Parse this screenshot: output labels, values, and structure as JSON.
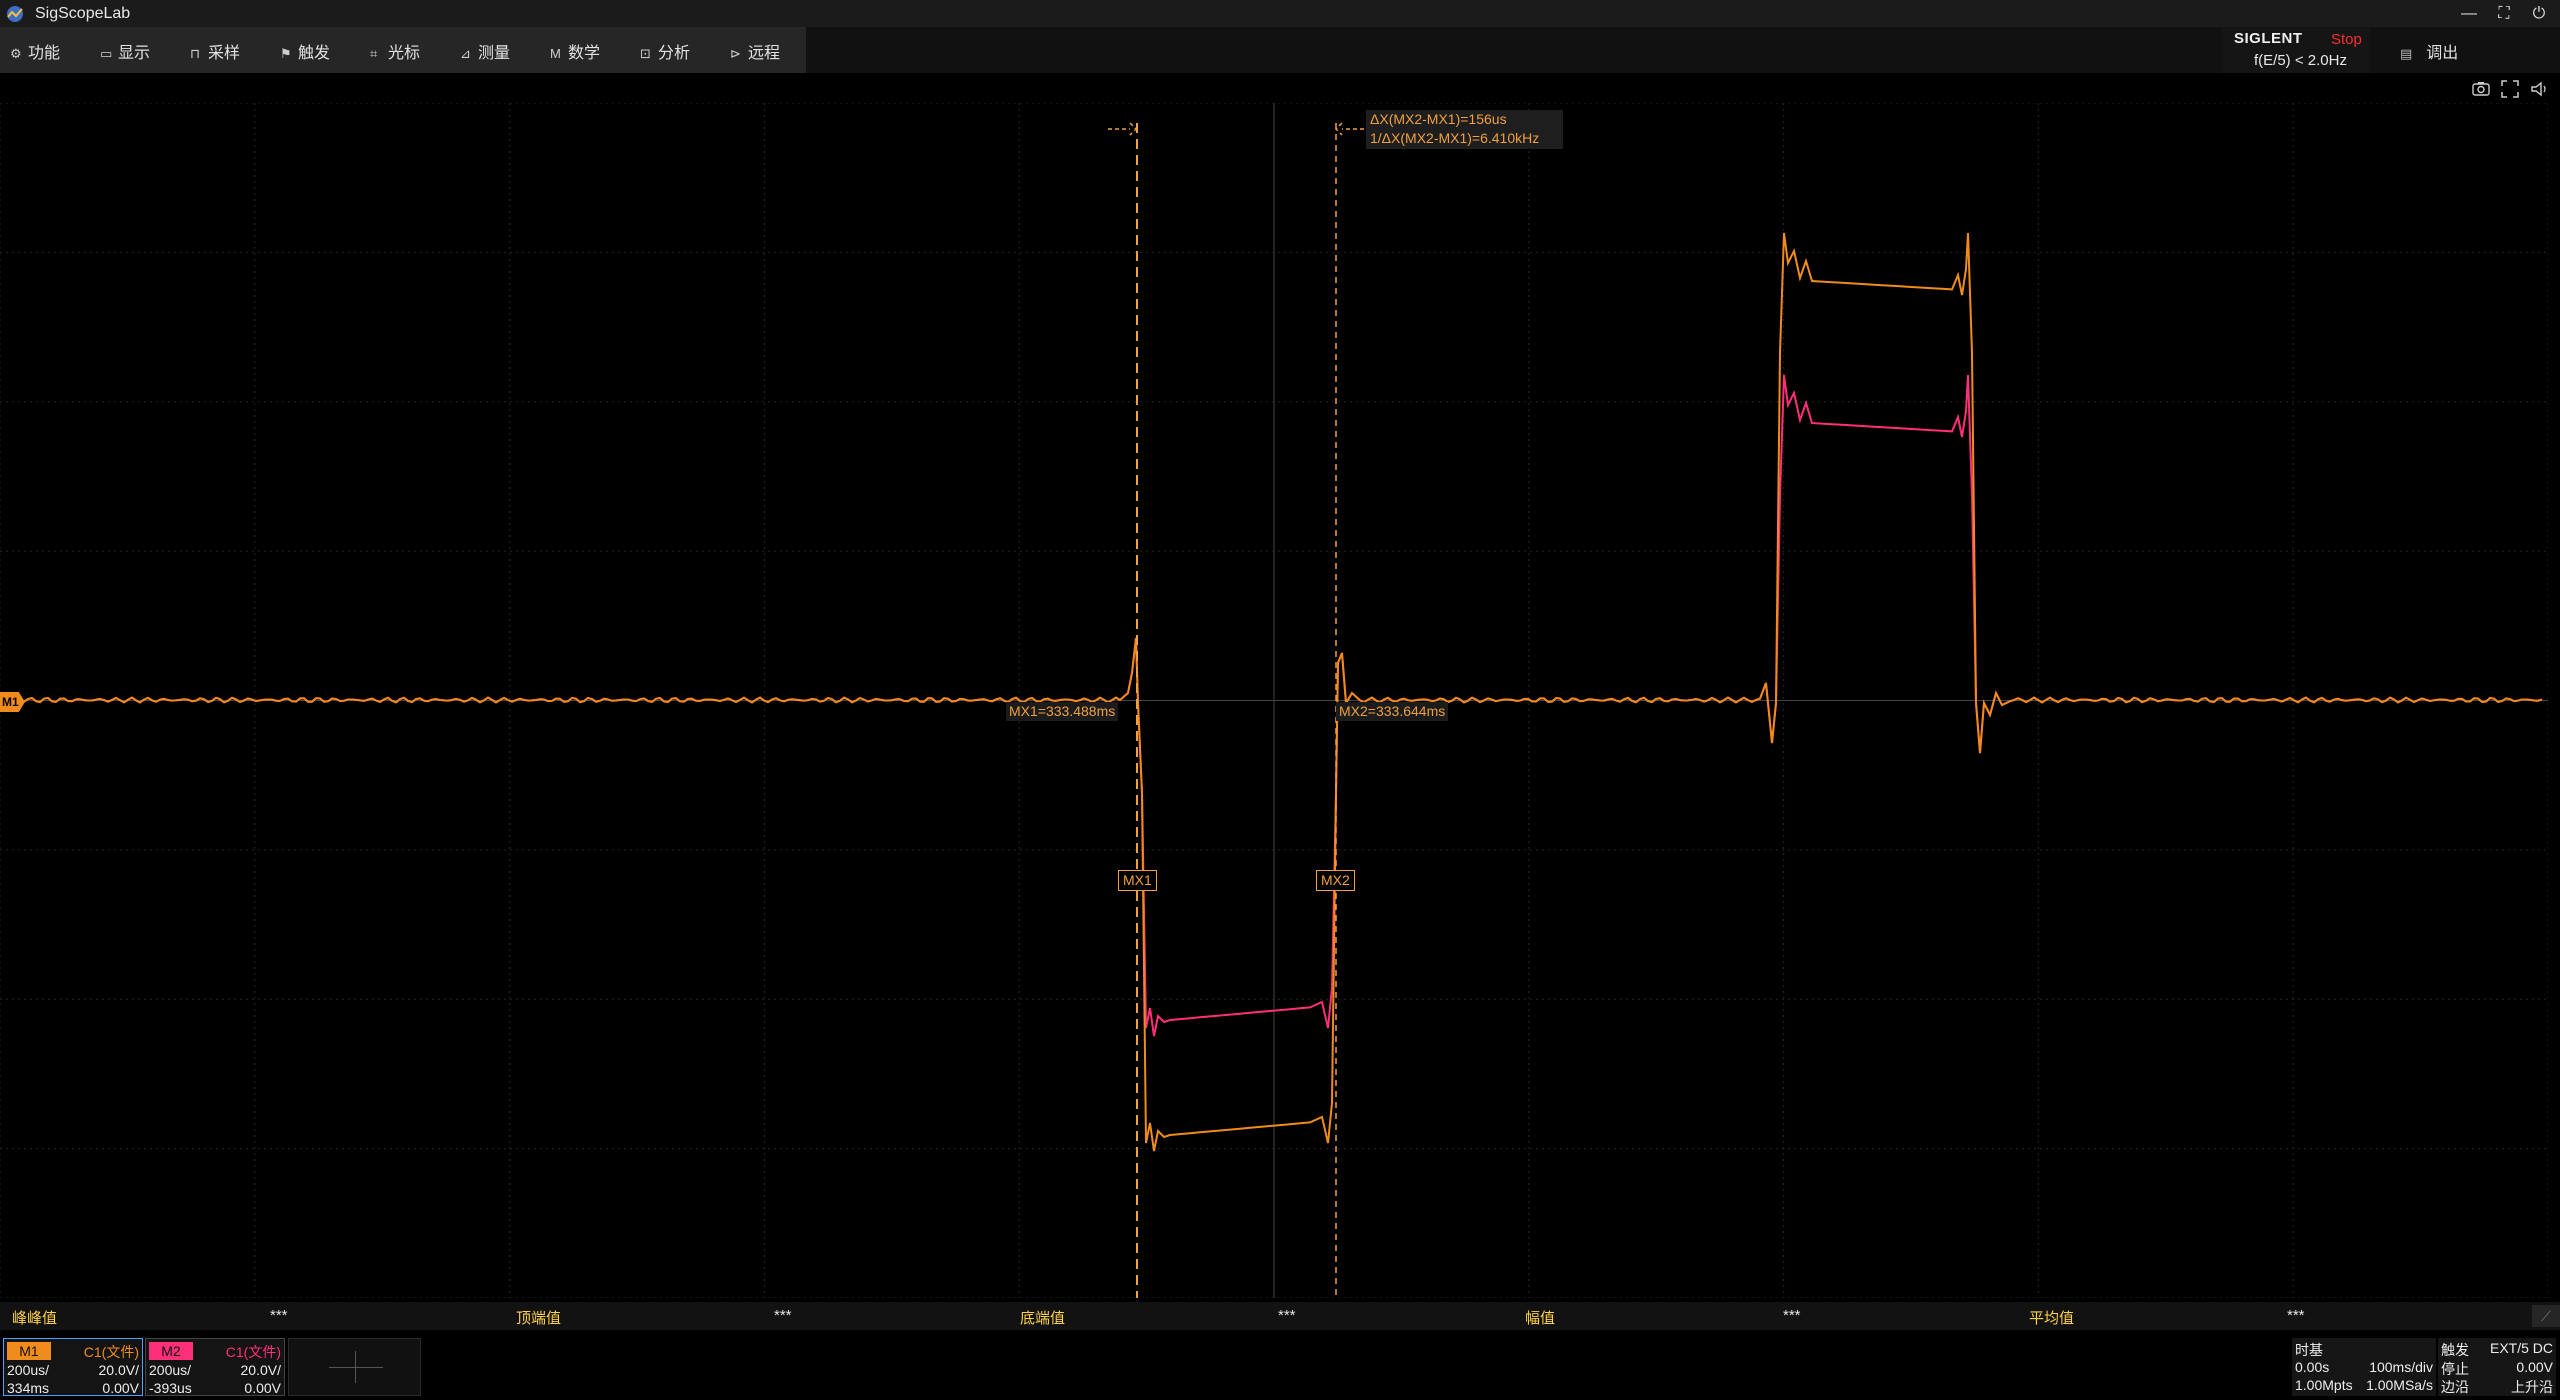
{
  "app": {
    "title": "SigScopeLab"
  },
  "window_controls": {
    "minimize": "—",
    "restore": "⛶",
    "power": "⏻"
  },
  "menu": [
    {
      "label": "功能",
      "icon": "gear-icon"
    },
    {
      "label": "显示",
      "icon": "monitor-icon"
    },
    {
      "label": "采样",
      "icon": "sample-icon"
    },
    {
      "label": "触发",
      "icon": "flag-icon"
    },
    {
      "label": "光标",
      "icon": "cursor-icon"
    },
    {
      "label": "测量",
      "icon": "ruler-icon"
    },
    {
      "label": "数学",
      "icon": "math-icon"
    },
    {
      "label": "分析",
      "icon": "analysis-icon"
    },
    {
      "label": "远程",
      "icon": "remote-icon"
    }
  ],
  "status": {
    "brand": "SIGLENT",
    "run_state": "Stop",
    "trigger_freq": "f(E/5) < 2.0Hz",
    "run_state_color": "#ff2d2d"
  },
  "export": {
    "label": "调出",
    "icon": "export-icon"
  },
  "tools": [
    "camera-icon",
    "fullscreen-icon",
    "speaker-icon"
  ],
  "cursors": {
    "delta_x": "ΔX(MX2-MX1)=156us",
    "inv_delta_x": "1/ΔX(MX2-MX1)=6.410kHz",
    "mx1_tag": "MX1",
    "mx2_tag": "MX2",
    "mx1_readout": "MX1=333.488ms",
    "mx2_readout": "MX2=333.644ms"
  },
  "trace_marker": "M1",
  "colors": {
    "m1": "#f08c1c",
    "m2": "#ff2f7a",
    "cursor": "#f0a040",
    "measure_label": "#ffd24a"
  },
  "measurements": [
    {
      "label": "峰峰值",
      "value": "***"
    },
    {
      "label": "顶端值",
      "value": "***"
    },
    {
      "label": "底端值",
      "value": "***"
    },
    {
      "label": "幅值",
      "value": "***"
    },
    {
      "label": "平均值",
      "value": "***"
    }
  ],
  "channels": [
    {
      "tag": "M1",
      "source": "C1(文件)",
      "timebase": "200us/",
      "vscale": "20.0V/",
      "offset_t": "334ms",
      "offset_v": "0.00V"
    },
    {
      "tag": "M2",
      "source": "C1(文件)",
      "timebase": "200us/",
      "vscale": "20.0V/",
      "offset_t": "-393us",
      "offset_v": "0.00V"
    }
  ],
  "timebase": {
    "title": "时基",
    "delay": "0.00s",
    "scale": "100ms/div",
    "memory": "1.00Mpts",
    "rate": "1.00MSa/s"
  },
  "trigger": {
    "title": "触发",
    "source": "EXT/5 DC",
    "state": "停止",
    "level": "0.00V",
    "type": "边沿",
    "slope": "上升沿"
  }
}
